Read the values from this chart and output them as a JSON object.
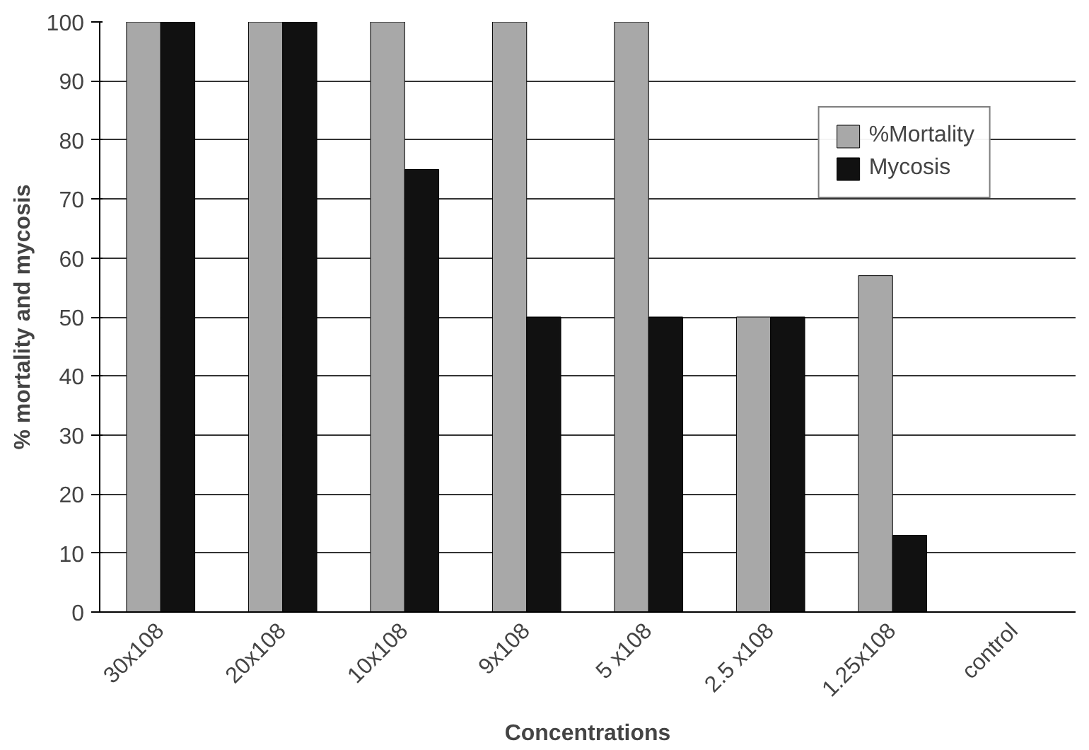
{
  "chart_data": {
    "type": "bar",
    "xlabel": "Concentrations",
    "ylabel": "% mortality and mycosis",
    "categories": [
      "30x108",
      "20x108",
      "10x108",
      "9x108",
      "5 x108",
      "2.5 x108",
      "1.25x108",
      "control"
    ],
    "series": [
      {
        "name": "%Mortality",
        "color": "#a8a8a8",
        "values": [
          100,
          100,
          100,
          100,
          100,
          50,
          57,
          null
        ]
      },
      {
        "name": "Mycosis",
        "color": "#111111",
        "values": [
          100,
          100,
          75,
          50,
          50,
          50,
          13,
          null
        ]
      }
    ],
    "ylim": [
      0,
      100
    ],
    "yticks": [
      0,
      10,
      20,
      30,
      40,
      50,
      60,
      70,
      80,
      90,
      100
    ],
    "grid": "y",
    "legend": "top right"
  }
}
